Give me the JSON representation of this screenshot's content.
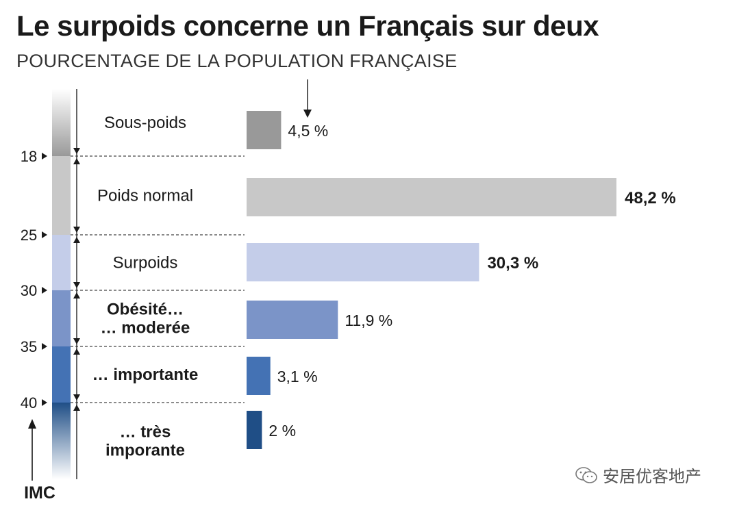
{
  "title": "Le surpoids concerne un Français sur deux",
  "subtitle": "POURCENTAGE DE LA POPULATION FRANÇAISE",
  "axis_label": "IMC",
  "watermark": "安居优客地产",
  "chart_data": {
    "type": "bar",
    "orientation": "horizontal",
    "categories": [
      "Sous-poids",
      "Poids normal",
      "Surpoids",
      "Obésité… … moderée",
      "… importante",
      "… très imporante"
    ],
    "category_lines": [
      [
        "Sous-poids"
      ],
      [
        "Poids normal"
      ],
      [
        "Surpoids"
      ],
      [
        "Obésité…",
        "… moderée"
      ],
      [
        "… importante"
      ],
      [
        "… très",
        "imporante"
      ]
    ],
    "bold_categories": [
      false,
      false,
      false,
      true,
      true,
      true
    ],
    "values": [
      4.5,
      48.2,
      30.3,
      11.9,
      3.1,
      2
    ],
    "value_labels": [
      "4,5 %",
      "48,2 %",
      "30,3 %",
      "11,9 %",
      "3,1 %",
      "2 %"
    ],
    "bold_value_labels": [
      false,
      true,
      true,
      false,
      false,
      false
    ],
    "unit": "%",
    "colors": [
      "#999999",
      "#c8c8c8",
      "#c4cde9",
      "#7b94c8",
      "#4472b4",
      "#1f4e86"
    ],
    "imc_thresholds": [
      "18",
      "25",
      "30",
      "35",
      "40"
    ],
    "xlim": [
      0,
      50
    ]
  }
}
